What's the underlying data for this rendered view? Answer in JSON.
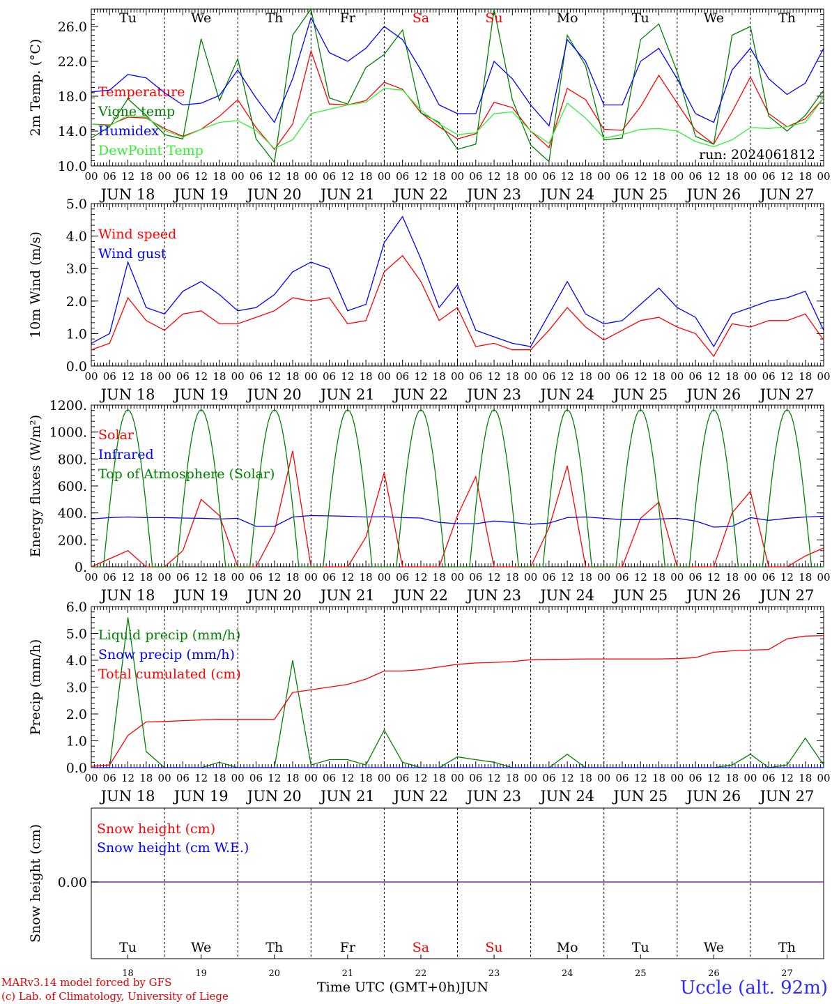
{
  "chart_data": [
    {
      "type": "line",
      "ylabel": "2m Temp. (°C)",
      "ylim": [
        10,
        28
      ],
      "yticks": [
        "10.0",
        "14.0",
        "18.0",
        "22.0",
        "26.0"
      ],
      "annotation": "run: 2024061812",
      "x_hours": [
        0,
        6,
        12,
        18,
        24,
        30,
        36,
        42,
        48,
        54,
        60,
        66,
        72,
        78,
        84,
        90,
        96,
        102,
        108,
        114,
        120,
        126,
        132,
        138,
        144,
        150,
        156,
        162,
        168,
        174,
        180,
        186,
        192,
        198,
        204,
        210,
        216,
        222,
        228,
        234,
        240
      ],
      "series": [
        {
          "name": "Temperature",
          "color": "#ff0000",
          "values": [
            14.8,
            14.7,
            15.6,
            15.5,
            14.3,
            13.4,
            14.2,
            15.7,
            17.6,
            14.4,
            11.9,
            14.8,
            23.2,
            17.1,
            17.0,
            17.5,
            19.6,
            18.8,
            16.1,
            14.5,
            13.1,
            13.7,
            17.3,
            16.7,
            14.0,
            12.1,
            18.9,
            17.6,
            14.2,
            14.1,
            16.8,
            20.4,
            17.2,
            14.1,
            12.5,
            16.2,
            20.2,
            16.0,
            14.5,
            15.4,
            17.8
          ]
        },
        {
          "name": "Vigne temp",
          "color": "#008000",
          "values": [
            13.2,
            14.5,
            17.7,
            15.8,
            13.6,
            13.1,
            24.6,
            17.5,
            22.3,
            13.1,
            10.4,
            25.0,
            28.0,
            17.8,
            17.1,
            21.3,
            22.8,
            25.6,
            16.1,
            15.0,
            11.9,
            12.5,
            28.0,
            17.6,
            12.4,
            10.5,
            25.0,
            21.5,
            13.0,
            13.2,
            24.5,
            26.3,
            20.8,
            13.4,
            12.5,
            25.0,
            26.0,
            15.7,
            14.0,
            15.8,
            18.7
          ]
        },
        {
          "name": "Humidex",
          "color": "#0000ff",
          "values": [
            18.5,
            18.7,
            20.5,
            20.1,
            18.4,
            17.0,
            17.2,
            18.1,
            21.0,
            17.8,
            15.0,
            20.0,
            27.0,
            23.0,
            22.0,
            23.5,
            26.0,
            24.5,
            21.0,
            17.0,
            16.0,
            16.0,
            22.0,
            20.0,
            17.0,
            14.6,
            24.5,
            22.0,
            17.0,
            17.0,
            22.0,
            23.5,
            20.0,
            16.0,
            15.0,
            21.0,
            23.5,
            20.0,
            18.2,
            19.5,
            23.5
          ]
        },
        {
          "name": "DewPoint Temp",
          "color": "#33ee33",
          "values": [
            14.8,
            14.6,
            15.8,
            15.6,
            14.1,
            13.3,
            14.2,
            15.0,
            15.2,
            14.1,
            12.0,
            13.0,
            16.0,
            16.5,
            17.0,
            17.3,
            18.9,
            18.7,
            16.4,
            14.8,
            13.6,
            13.8,
            16.0,
            16.2,
            14.0,
            12.6,
            17.2,
            15.5,
            13.2,
            13.6,
            14.2,
            14.3,
            14.0,
            12.8,
            12.2,
            13.0,
            14.4,
            14.3,
            14.5,
            15.0,
            17.8
          ]
        }
      ]
    },
    {
      "type": "line",
      "ylabel": "10m Wind (m/s)",
      "ylim": [
        0,
        5
      ],
      "yticks": [
        "0.0",
        "1.0",
        "2.0",
        "3.0",
        "4.0",
        "5.0"
      ],
      "x_hours": [
        0,
        6,
        12,
        18,
        24,
        30,
        36,
        42,
        48,
        54,
        60,
        66,
        72,
        78,
        84,
        90,
        96,
        102,
        108,
        114,
        120,
        126,
        132,
        138,
        144,
        150,
        156,
        162,
        168,
        174,
        180,
        186,
        192,
        198,
        204,
        210,
        216,
        222,
        228,
        234,
        240
      ],
      "series": [
        {
          "name": "Wind speed",
          "color": "#ff0000",
          "values": [
            0.5,
            0.7,
            2.1,
            1.4,
            1.1,
            1.6,
            1.7,
            1.3,
            1.3,
            1.5,
            1.7,
            2.1,
            2.0,
            2.1,
            1.3,
            1.4,
            2.9,
            3.4,
            2.6,
            1.4,
            1.8,
            0.6,
            0.7,
            0.5,
            0.5,
            1.1,
            1.8,
            1.2,
            0.8,
            1.1,
            1.4,
            1.5,
            1.2,
            1.0,
            0.3,
            1.3,
            1.2,
            1.4,
            1.4,
            1.6,
            0.8
          ]
        },
        {
          "name": "Wind gust",
          "color": "#0000ff",
          "values": [
            0.7,
            1.0,
            3.2,
            1.8,
            1.6,
            2.3,
            2.6,
            2.2,
            1.7,
            1.8,
            2.2,
            2.9,
            3.2,
            3.0,
            1.7,
            1.9,
            3.8,
            4.6,
            3.3,
            1.8,
            2.5,
            1.1,
            0.9,
            0.7,
            0.6,
            1.6,
            2.6,
            1.6,
            1.3,
            1.4,
            1.9,
            2.4,
            1.8,
            1.5,
            0.6,
            1.6,
            1.8,
            2.0,
            2.1,
            2.3,
            1.1
          ]
        }
      ]
    },
    {
      "type": "line",
      "ylabel": "Energy fluxes (W/m²)",
      "ylim": [
        0,
        1200
      ],
      "yticks": [
        "0.",
        "200.",
        "400.",
        "600.",
        "800.",
        "1000.",
        "1200."
      ],
      "x_hours": [
        0,
        6,
        12,
        18,
        24,
        30,
        36,
        42,
        48,
        54,
        60,
        66,
        72,
        78,
        84,
        90,
        96,
        102,
        108,
        114,
        120,
        126,
        132,
        138,
        144,
        150,
        156,
        162,
        168,
        174,
        180,
        186,
        192,
        198,
        204,
        210,
        216,
        222,
        228,
        234,
        240
      ],
      "series": [
        {
          "name": "Solar",
          "color": "#ff0000",
          "values": [
            0,
            60,
            120,
            0,
            0,
            120,
            500,
            380,
            0,
            0,
            260,
            860,
            0,
            0,
            0,
            220,
            700,
            0,
            0,
            0,
            380,
            670,
            0,
            0,
            0,
            290,
            750,
            0,
            0,
            0,
            360,
            480,
            0,
            0,
            0,
            400,
            560,
            0,
            0,
            80,
            140
          ]
        },
        {
          "name": "Infrared",
          "color": "#0000ff",
          "values": [
            355,
            365,
            370,
            365,
            365,
            362,
            360,
            355,
            360,
            300,
            300,
            370,
            380,
            378,
            375,
            370,
            372,
            365,
            362,
            330,
            320,
            320,
            340,
            330,
            315,
            325,
            365,
            370,
            360,
            350,
            350,
            355,
            360,
            340,
            295,
            300,
            365,
            345,
            360,
            370,
            375
          ]
        },
        {
          "name": "Top of Atmosphere (Solar)",
          "color": "#008000",
          "peak": 1165,
          "daylight_hours": [
            4,
            20
          ]
        }
      ]
    },
    {
      "type": "line",
      "ylabel": "Precip (mm/h)",
      "ylim": [
        0,
        6
      ],
      "yticks": [
        "0.0",
        "1.0",
        "2.0",
        "3.0",
        "4.0",
        "5.0",
        "6.0"
      ],
      "x_hours": [
        0,
        6,
        12,
        18,
        24,
        30,
        36,
        42,
        48,
        54,
        60,
        66,
        72,
        78,
        84,
        90,
        96,
        102,
        108,
        114,
        120,
        126,
        132,
        138,
        144,
        150,
        156,
        162,
        168,
        174,
        180,
        186,
        192,
        198,
        204,
        210,
        216,
        222,
        228,
        234,
        240
      ],
      "series": [
        {
          "name": "Liquid precip (mm/h)",
          "color": "#008000",
          "values": [
            0,
            0,
            5.6,
            0.6,
            0,
            0,
            0,
            0.2,
            0,
            0,
            0,
            4.0,
            0.1,
            0.3,
            0.3,
            0.1,
            1.4,
            0.2,
            0,
            0,
            0.4,
            0.3,
            0.2,
            0,
            0,
            0,
            0.5,
            0,
            0,
            0,
            0,
            0,
            0,
            0,
            0,
            0.1,
            0.5,
            0,
            0.1,
            1.1,
            0.1
          ]
        },
        {
          "name": "Snow precip (mm/h)",
          "color": "#0000ff",
          "values": [
            0,
            0,
            0,
            0,
            0,
            0,
            0,
            0,
            0,
            0,
            0,
            0,
            0,
            0,
            0,
            0,
            0,
            0,
            0,
            0,
            0,
            0,
            0,
            0,
            0,
            0,
            0,
            0,
            0,
            0,
            0,
            0,
            0,
            0,
            0,
            0,
            0,
            0,
            0,
            0,
            0
          ]
        },
        {
          "name": "Total cumulated (cm)",
          "color": "#ff0000",
          "values": [
            0.05,
            0.1,
            1.2,
            1.7,
            1.72,
            1.75,
            1.78,
            1.8,
            1.8,
            1.8,
            1.8,
            2.8,
            2.9,
            3.0,
            3.1,
            3.3,
            3.6,
            3.6,
            3.65,
            3.75,
            3.85,
            3.9,
            3.92,
            3.95,
            4.02,
            4.03,
            4.04,
            4.05,
            4.05,
            4.05,
            4.05,
            4.05,
            4.06,
            4.1,
            4.3,
            4.35,
            4.38,
            4.4,
            4.8,
            4.9,
            4.92
          ]
        }
      ]
    },
    {
      "type": "line",
      "ylabel": "Snow height (cm)",
      "ytick_label": "0.00",
      "series": [
        {
          "name": "Snow height (cm)",
          "color": "#ff0000",
          "value": 0
        },
        {
          "name": "Snow height (cm W.E.)",
          "color": "#0000ff",
          "value": 0
        }
      ]
    }
  ],
  "axis": {
    "hour_labels": [
      "00",
      "06",
      "12",
      "18"
    ],
    "end_label": "00",
    "date_labels": [
      "JUN 18",
      "JUN 19",
      "JUN 20",
      "JUN 21",
      "JUN 22",
      "JUN 23",
      "JUN 24",
      "JUN 25",
      "JUN 26",
      "JUN 27"
    ],
    "day_names": [
      "Tu",
      "We",
      "Th",
      "Fr",
      "Sa",
      "Su",
      "Mo",
      "Tu",
      "We",
      "Th"
    ],
    "weekend_flags": [
      false,
      false,
      false,
      false,
      true,
      true,
      false,
      false,
      false,
      false
    ],
    "day_numbers": [
      "18",
      "19",
      "20",
      "21",
      "22",
      "23",
      "24",
      "25",
      "26",
      "27"
    ],
    "title": "Time UTC (GMT+0h)",
    "month": "JUN"
  },
  "colors": {
    "weekday": "#000000",
    "weekend": "#ff0000",
    "snow_line": "#7b2a9a"
  },
  "footer": {
    "credit_line1": "MARv3.14 model forced by GFS",
    "credit_line2": "(c) Lab. of Climatology, University of Liege",
    "station": "Uccle (alt. 92m)"
  }
}
